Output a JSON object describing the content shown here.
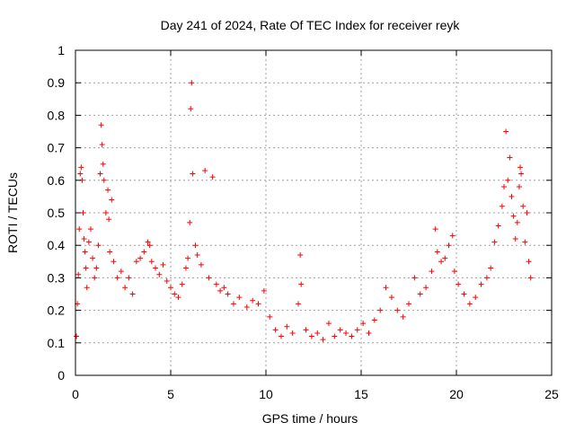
{
  "chart_data": {
    "type": "scatter",
    "title": "Day 241 of 2024, Rate Of TEC Index for receiver reyk",
    "xlabel": "GPS time / hours",
    "ylabel": "ROTI / TECUs",
    "xlim": [
      0,
      25
    ],
    "ylim": [
      0,
      1
    ],
    "xticks": [
      0,
      5,
      10,
      15,
      20,
      25
    ],
    "xtick_labels": [
      "0",
      "5",
      "10",
      "15",
      "20",
      "25"
    ],
    "yticks": [
      0,
      0.1,
      0.2,
      0.3,
      0.4,
      0.5,
      0.6,
      0.7,
      0.8,
      0.9,
      1
    ],
    "ytick_labels": [
      "0",
      "0.1",
      "0.2",
      "0.3",
      "0.4",
      "0.5",
      "0.6",
      "0.7",
      "0.8",
      "0.9",
      "1"
    ],
    "grid": true,
    "marker": "plus",
    "color": "#ff0000",
    "points": [
      [
        0.05,
        0.12
      ],
      [
        0.1,
        0.22
      ],
      [
        0.15,
        0.31
      ],
      [
        0.2,
        0.45
      ],
      [
        0.25,
        0.62
      ],
      [
        0.3,
        0.64
      ],
      [
        0.35,
        0.6
      ],
      [
        0.4,
        0.5
      ],
      [
        0.45,
        0.42
      ],
      [
        0.5,
        0.38
      ],
      [
        0.55,
        0.33
      ],
      [
        0.6,
        0.27
      ],
      [
        0.7,
        0.41
      ],
      [
        0.8,
        0.45
      ],
      [
        0.9,
        0.36
      ],
      [
        1.0,
        0.3
      ],
      [
        1.1,
        0.33
      ],
      [
        1.2,
        0.4
      ],
      [
        1.3,
        0.62
      ],
      [
        1.35,
        0.77
      ],
      [
        1.4,
        0.71
      ],
      [
        1.45,
        0.65
      ],
      [
        1.5,
        0.6
      ],
      [
        1.6,
        0.5
      ],
      [
        1.7,
        0.57
      ],
      [
        1.75,
        0.48
      ],
      [
        1.8,
        0.38
      ],
      [
        1.9,
        0.54
      ],
      [
        2.0,
        0.35
      ],
      [
        2.2,
        0.3
      ],
      [
        2.4,
        0.32
      ],
      [
        2.6,
        0.27
      ],
      [
        2.8,
        0.3
      ],
      [
        3.0,
        0.25
      ],
      [
        3.2,
        0.35
      ],
      [
        3.4,
        0.36
      ],
      [
        3.6,
        0.38
      ],
      [
        3.8,
        0.41
      ],
      [
        3.9,
        0.4
      ],
      [
        4.0,
        0.35
      ],
      [
        4.2,
        0.33
      ],
      [
        4.4,
        0.31
      ],
      [
        4.6,
        0.34
      ],
      [
        4.8,
        0.29
      ],
      [
        5.0,
        0.27
      ],
      [
        5.2,
        0.25
      ],
      [
        5.4,
        0.24
      ],
      [
        5.6,
        0.28
      ],
      [
        5.8,
        0.33
      ],
      [
        5.9,
        0.36
      ],
      [
        6.0,
        0.47
      ],
      [
        6.05,
        0.82
      ],
      [
        6.1,
        0.9
      ],
      [
        6.15,
        0.62
      ],
      [
        6.3,
        0.4
      ],
      [
        6.4,
        0.37
      ],
      [
        6.6,
        0.34
      ],
      [
        6.8,
        0.63
      ],
      [
        7.0,
        0.3
      ],
      [
        7.2,
        0.61
      ],
      [
        7.4,
        0.28
      ],
      [
        7.6,
        0.26
      ],
      [
        7.8,
        0.27
      ],
      [
        8.0,
        0.25
      ],
      [
        8.3,
        0.22
      ],
      [
        8.6,
        0.24
      ],
      [
        9.0,
        0.21
      ],
      [
        9.3,
        0.23
      ],
      [
        9.6,
        0.22
      ],
      [
        9.9,
        0.26
      ],
      [
        10.2,
        0.18
      ],
      [
        10.5,
        0.14
      ],
      [
        10.8,
        0.12
      ],
      [
        11.1,
        0.15
      ],
      [
        11.4,
        0.13
      ],
      [
        11.7,
        0.22
      ],
      [
        11.8,
        0.37
      ],
      [
        11.85,
        0.28
      ],
      [
        12.1,
        0.14
      ],
      [
        12.4,
        0.12
      ],
      [
        12.7,
        0.13
      ],
      [
        13.0,
        0.11
      ],
      [
        13.3,
        0.16
      ],
      [
        13.6,
        0.12
      ],
      [
        13.9,
        0.14
      ],
      [
        14.2,
        0.13
      ],
      [
        14.5,
        0.12
      ],
      [
        14.8,
        0.14
      ],
      [
        15.1,
        0.16
      ],
      [
        15.4,
        0.13
      ],
      [
        15.7,
        0.17
      ],
      [
        16.0,
        0.2
      ],
      [
        16.3,
        0.27
      ],
      [
        16.6,
        0.24
      ],
      [
        16.9,
        0.2
      ],
      [
        17.2,
        0.18
      ],
      [
        17.5,
        0.22
      ],
      [
        17.8,
        0.3
      ],
      [
        18.1,
        0.25
      ],
      [
        18.4,
        0.27
      ],
      [
        18.7,
        0.32
      ],
      [
        18.9,
        0.45
      ],
      [
        19.0,
        0.38
      ],
      [
        19.2,
        0.35
      ],
      [
        19.4,
        0.36
      ],
      [
        19.6,
        0.4
      ],
      [
        19.8,
        0.43
      ],
      [
        19.9,
        0.32
      ],
      [
        20.1,
        0.28
      ],
      [
        20.4,
        0.25
      ],
      [
        20.7,
        0.22
      ],
      [
        21.0,
        0.24
      ],
      [
        21.3,
        0.28
      ],
      [
        21.6,
        0.3
      ],
      [
        21.8,
        0.33
      ],
      [
        22.0,
        0.41
      ],
      [
        22.2,
        0.46
      ],
      [
        22.4,
        0.52
      ],
      [
        22.5,
        0.58
      ],
      [
        22.6,
        0.75
      ],
      [
        22.7,
        0.6
      ],
      [
        22.8,
        0.67
      ],
      [
        22.9,
        0.55
      ],
      [
        23.0,
        0.49
      ],
      [
        23.1,
        0.42
      ],
      [
        23.2,
        0.47
      ],
      [
        23.3,
        0.58
      ],
      [
        23.35,
        0.64
      ],
      [
        23.4,
        0.62
      ],
      [
        23.5,
        0.52
      ],
      [
        23.6,
        0.41
      ],
      [
        23.7,
        0.5
      ],
      [
        23.8,
        0.35
      ],
      [
        23.9,
        0.3
      ]
    ]
  }
}
